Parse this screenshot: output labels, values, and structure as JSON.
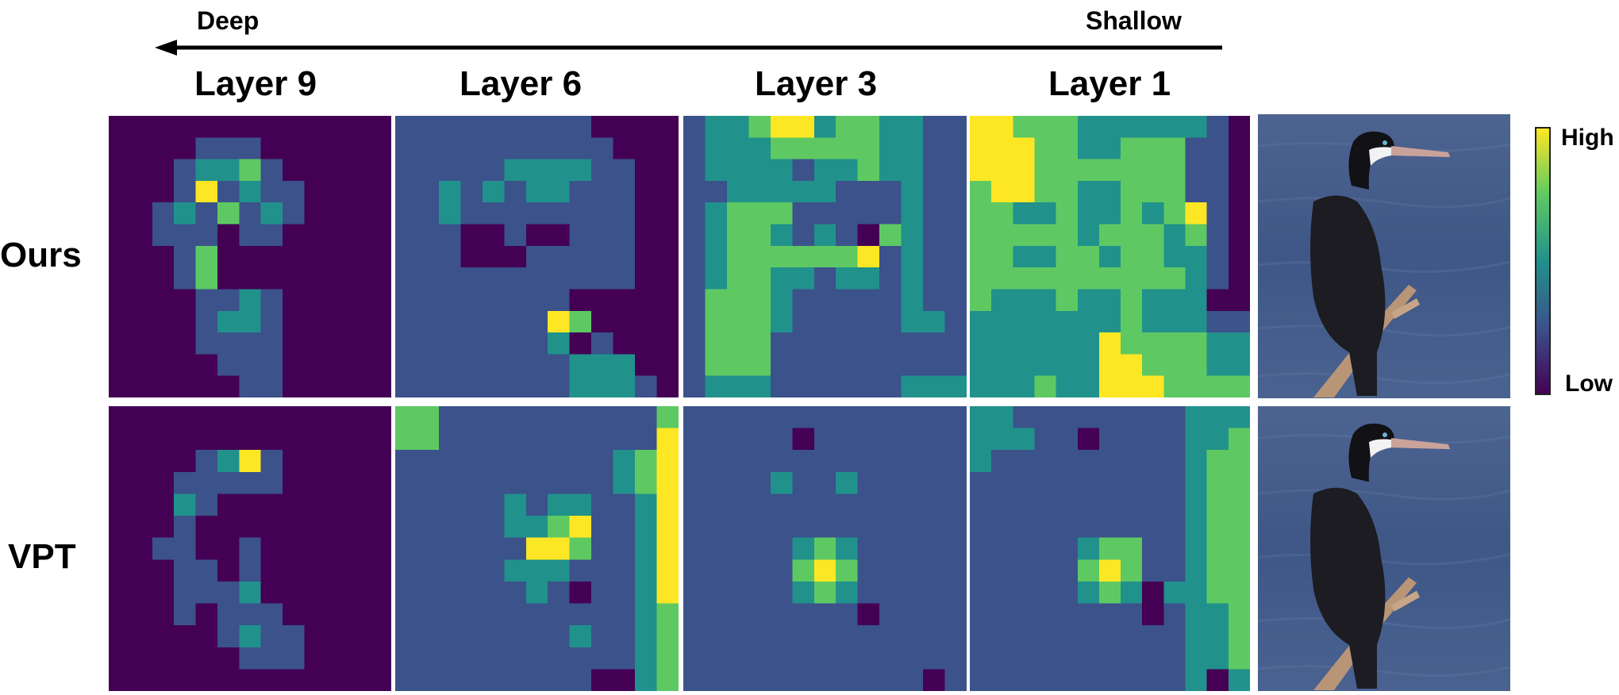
{
  "direction": {
    "left_label": "Deep",
    "right_label": "Shallow"
  },
  "column_headers": [
    "Layer 9",
    "Layer 6",
    "Layer 3",
    "Layer 1"
  ],
  "row_labels": [
    "Ours",
    "VPT"
  ],
  "colorbar": {
    "high_label": "High",
    "low_label": "Low",
    "colormap": [
      "#440154",
      "#3b528b",
      "#21918c",
      "#5ec962",
      "#fde725"
    ]
  },
  "heatmaps": {
    "ours": [
      [
        "0000000000000",
        "0000111000000",
        "0001223100000",
        "0001412110000",
        "0012131210000",
        "0011101100000",
        "0001300000000",
        "0001300000000",
        "0000112100000",
        "0000122100000",
        "0000111100000",
        "0000011100000",
        "0000001100000"
      ],
      [
        "1111111110000",
        "1111111111000",
        "1111122221100",
        "1121212211100",
        "1121111111100",
        "1110010011100",
        "1110001111100",
        "1111111111100",
        "1111111100000",
        "1111111430000",
        "1111111251000",
        "1111111122200",
        "1111111122210"
      ],
      [
        "1223442332211",
        "1222333332211",
        "1222212232211",
        "1122222111211",
        "1233311111211",
        "1233212103211",
        "1233333341211",
        "1233221221211",
        "1333211111211",
        "1333211111221",
        "1333111111111",
        "1333111111111",
        "1222111111222"
      ],
      [
        "4433322222210",
        "4443322333110",
        "4443333333110",
        "3443322333110",
        "3322322323410",
        "3333323332310",
        "3322332332210",
        "3333333333210",
        "3222322322200",
        "2222222322211",
        "2222224333322",
        "2222224433322",
        "2223224443333"
      ]
    ],
    "vpt": [
      [
        "0000000000000",
        "0000000000000",
        "0000124100000",
        "0001111100000",
        "0002100000000",
        "0001000000000",
        "0011001000000",
        "0001101000000",
        "0001112000000",
        "0001011100000",
        "0000012110000",
        "0000001110000",
        "0000000000000"
      ],
      [
        "3311111111113",
        "3311111111114",
        "1111111111234",
        "1111111111234",
        "1111121221124",
        "1111122341124",
        "1111114431124",
        "1111122211124",
        "1111112101124",
        "1111111111123",
        "1111111121123",
        "1111111111123",
        "1111111110023"
      ],
      [
        "1111111111111",
        "1111101111111",
        "1111111111111",
        "1111211211111",
        "1111111111111",
        "1111111111111",
        "1111123211111",
        "1111134311111",
        "1111123211111",
        "1111111101111",
        "1111111111111",
        "1111111111111",
        "1111111111101"
      ],
      [
        "2211111111222",
        "2221101111223",
        "2111111111233",
        "1111111111233",
        "1111111111233",
        "1111111111233",
        "1111123311233",
        "1111134311233",
        "1111123202233",
        "1111111101223",
        "1111111111223",
        "1111111111223",
        "1111111111202"
      ]
    ]
  }
}
